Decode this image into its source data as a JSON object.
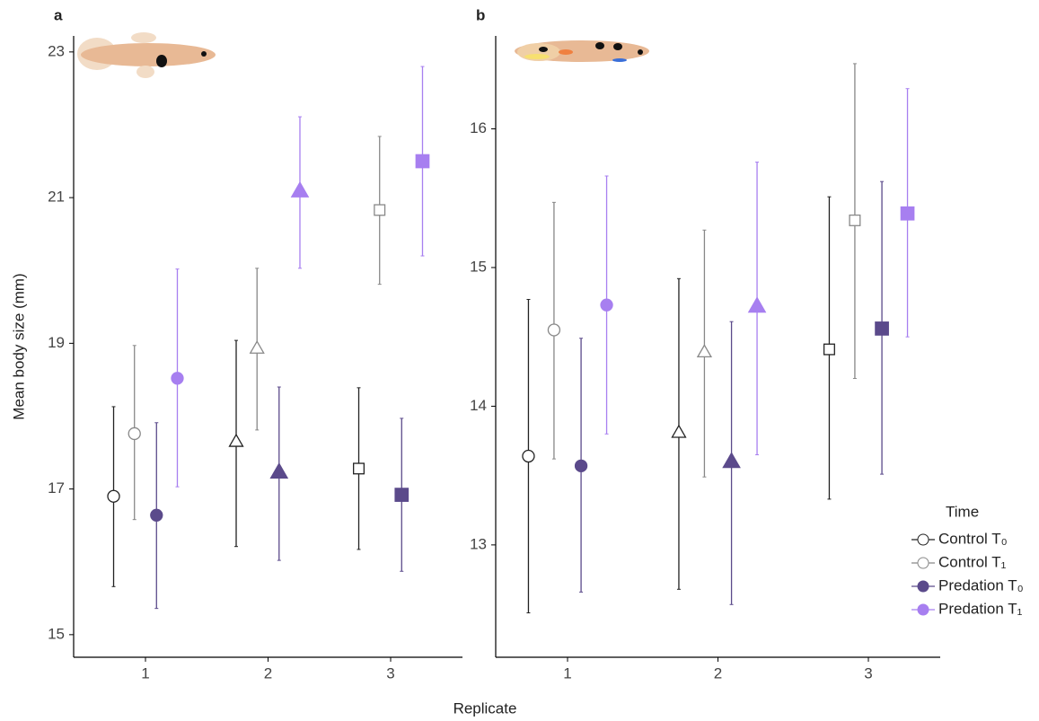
{
  "chart_data": [
    {
      "type": "dot-error",
      "panel_label": "a",
      "ylabel": "Mean body size (mm)",
      "xlabel": "Replicate",
      "categories": [
        "1",
        "2",
        "3"
      ],
      "markers": [
        "circle",
        "triangle",
        "square"
      ],
      "ylim": [
        14.69,
        23.22
      ],
      "yticks": [
        15,
        17,
        19,
        21,
        23
      ],
      "series": [
        {
          "name": "Control T₀",
          "color": "#222222",
          "filled": false,
          "values": [
            16.9,
            17.65,
            17.28
          ],
          "lower": [
            15.66,
            16.21,
            16.17
          ],
          "upper": [
            18.13,
            19.04,
            18.39
          ]
        },
        {
          "name": "Control T₁",
          "color": "#888888",
          "filled": false,
          "values": [
            17.76,
            18.93,
            20.83
          ],
          "lower": [
            16.58,
            17.81,
            19.81
          ],
          "upper": [
            18.97,
            20.03,
            21.84
          ]
        },
        {
          "name": "Predation T₀",
          "color": "#5b4a8b",
          "filled": true,
          "values": [
            16.64,
            17.23,
            16.92
          ],
          "lower": [
            15.36,
            16.02,
            15.87
          ],
          "upper": [
            17.91,
            18.4,
            17.97
          ]
        },
        {
          "name": "Predation T₁",
          "color": "#a77ff0",
          "filled": true,
          "values": [
            18.52,
            21.09,
            21.5
          ],
          "lower": [
            17.03,
            20.03,
            20.2
          ],
          "upper": [
            20.02,
            22.11,
            22.8
          ]
        }
      ]
    },
    {
      "type": "dot-error",
      "panel_label": "b",
      "legend_title": "Time",
      "categories": [
        "1",
        "2",
        "3"
      ],
      "markers": [
        "circle",
        "triangle",
        "square"
      ],
      "ylim": [
        12.19,
        16.67
      ],
      "yticks": [
        13,
        14,
        15,
        16
      ],
      "series": [
        {
          "name": "Control T₀",
          "color": "#222222",
          "filled": false,
          "values": [
            13.64,
            13.81,
            14.41
          ],
          "lower": [
            12.51,
            12.68,
            13.33
          ],
          "upper": [
            14.77,
            14.92,
            15.51
          ]
        },
        {
          "name": "Control T₁",
          "color": "#888888",
          "filled": false,
          "values": [
            14.55,
            14.39,
            15.34
          ],
          "lower": [
            13.62,
            13.49,
            14.2
          ],
          "upper": [
            15.47,
            15.27,
            16.47
          ]
        },
        {
          "name": "Predation T₀",
          "color": "#5b4a8b",
          "filled": true,
          "values": [
            13.57,
            13.6,
            14.56
          ],
          "lower": [
            12.66,
            12.57,
            13.51
          ],
          "upper": [
            14.49,
            14.61,
            15.62
          ]
        },
        {
          "name": "Predation T₁",
          "color": "#a77ff0",
          "filled": true,
          "values": [
            14.73,
            14.72,
            15.39
          ],
          "lower": [
            13.8,
            13.65,
            14.5
          ],
          "upper": [
            15.66,
            15.76,
            16.29
          ]
        }
      ]
    }
  ]
}
